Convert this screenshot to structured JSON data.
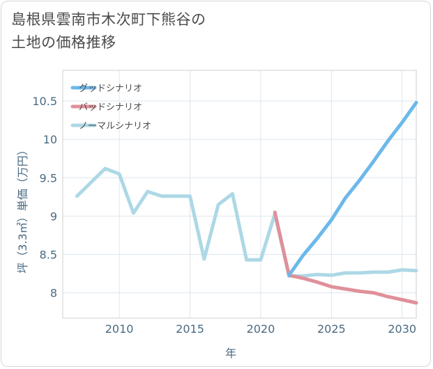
{
  "title": "島根県雲南市木次町下熊谷の\n土地の価格推移",
  "chart_data": {
    "type": "line",
    "title": "島根県雲南市木次町下熊谷の\n土地の価格推移",
    "xlabel": "年",
    "ylabel": "坪（3.3㎡）単価（万円）",
    "xlim": [
      2006,
      2031
    ],
    "ylim": [
      7.67,
      10.9
    ],
    "xticks": [
      2010,
      2015,
      2020,
      2025,
      2030
    ],
    "yticks": [
      8,
      8.5,
      9,
      9.5,
      10,
      10.5
    ],
    "ytick_labels": [
      "8",
      "8.5",
      "9",
      "9.5",
      "10",
      "10.5"
    ],
    "grid": true,
    "legend_position": "top-left",
    "series": [
      {
        "name": "グッドシナリオ",
        "color": "#6cb8ea",
        "x": [
          2022,
          2023,
          2024,
          2025,
          2026,
          2027,
          2028,
          2029,
          2030,
          2031
        ],
        "y": [
          8.23,
          8.49,
          8.71,
          8.95,
          9.24,
          9.47,
          9.72,
          9.98,
          10.22,
          10.48
        ]
      },
      {
        "name": "バッドシナリオ",
        "color": "#e0909a",
        "x": [
          2021,
          2022,
          2023,
          2024,
          2025,
          2026,
          2027,
          2028,
          2029,
          2030,
          2031
        ],
        "y": [
          9.05,
          8.23,
          8.19,
          8.14,
          8.08,
          8.05,
          8.02,
          8.0,
          7.95,
          7.91,
          7.87
        ]
      },
      {
        "name": "ノーマルシナリオ",
        "color": "#add8e6",
        "x": [
          2007,
          2008,
          2009,
          2010,
          2011,
          2012,
          2013,
          2014,
          2015,
          2016,
          2017,
          2018,
          2019,
          2020,
          2021,
          2022,
          2023,
          2024,
          2025,
          2026,
          2027,
          2028,
          2029,
          2030,
          2031
        ],
        "y": [
          9.26,
          9.44,
          9.62,
          9.55,
          9.04,
          9.32,
          9.26,
          9.26,
          9.26,
          8.44,
          9.15,
          9.29,
          8.43,
          8.43,
          9.03,
          8.22,
          8.22,
          8.24,
          8.23,
          8.26,
          8.26,
          8.27,
          8.27,
          8.3,
          8.29
        ]
      }
    ]
  }
}
